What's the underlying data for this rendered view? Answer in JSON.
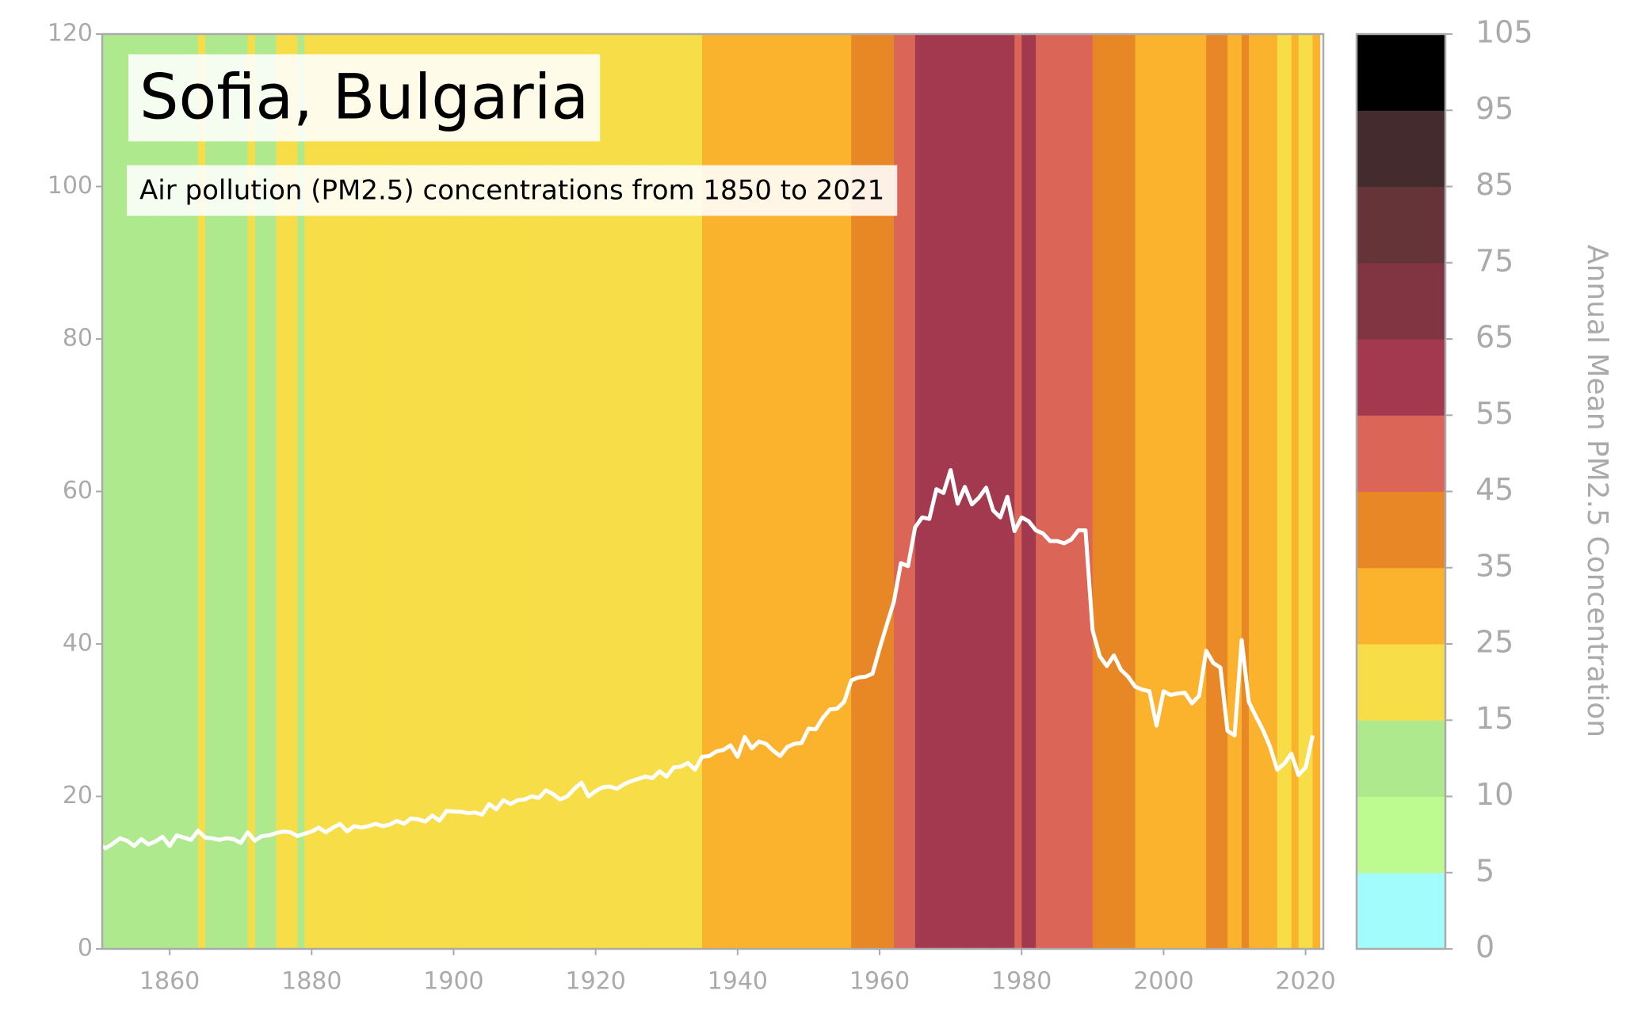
{
  "chart_data": {
    "type": "line",
    "title": "Sofia, Bulgaria",
    "subtitle": "Air pollution (PM2.5) concentrations from 1850 to 2021",
    "x": [
      1850,
      1851,
      1852,
      1853,
      1854,
      1855,
      1856,
      1857,
      1858,
      1859,
      1860,
      1861,
      1862,
      1863,
      1864,
      1865,
      1866,
      1867,
      1868,
      1869,
      1870,
      1871,
      1872,
      1873,
      1874,
      1875,
      1876,
      1877,
      1878,
      1879,
      1880,
      1881,
      1882,
      1883,
      1884,
      1885,
      1886,
      1887,
      1888,
      1889,
      1890,
      1891,
      1892,
      1893,
      1894,
      1895,
      1896,
      1897,
      1898,
      1899,
      1900,
      1901,
      1902,
      1903,
      1904,
      1905,
      1906,
      1907,
      1908,
      1909,
      1910,
      1911,
      1912,
      1913,
      1914,
      1915,
      1916,
      1917,
      1918,
      1919,
      1920,
      1921,
      1922,
      1923,
      1924,
      1925,
      1926,
      1927,
      1928,
      1929,
      1930,
      1931,
      1932,
      1933,
      1934,
      1935,
      1936,
      1937,
      1938,
      1939,
      1940,
      1941,
      1942,
      1943,
      1944,
      1945,
      1946,
      1947,
      1948,
      1949,
      1950,
      1951,
      1952,
      1953,
      1954,
      1955,
      1956,
      1957,
      1958,
      1959,
      1960,
      1961,
      1962,
      1963,
      1964,
      1965,
      1966,
      1967,
      1968,
      1969,
      1970,
      1971,
      1972,
      1973,
      1974,
      1975,
      1976,
      1977,
      1978,
      1979,
      1980,
      1981,
      1982,
      1983,
      1984,
      1985,
      1986,
      1987,
      1988,
      1989,
      1990,
      1991,
      1992,
      1993,
      1994,
      1995,
      1996,
      1997,
      1998,
      1999,
      2000,
      2001,
      2002,
      2003,
      2004,
      2005,
      2006,
      2007,
      2008,
      2009,
      2010,
      2011,
      2012,
      2013,
      2014,
      2015,
      2016,
      2017,
      2018,
      2019,
      2020,
      2021
    ],
    "values": [
      13.7,
      13.2,
      13.8,
      14.5,
      14.2,
      13.5,
      14.4,
      13.7,
      14.1,
      14.7,
      13.5,
      14.9,
      14.6,
      14.3,
      15.5,
      14.6,
      14.5,
      14.3,
      14.5,
      14.4,
      13.9,
      15.3,
      14.2,
      14.8,
      14.9,
      15.2,
      15.4,
      15.3,
      14.8,
      15.1,
      15.4,
      15.9,
      15.3,
      15.9,
      16.4,
      15.4,
      16.1,
      15.9,
      16.1,
      16.4,
      16.1,
      16.3,
      16.8,
      16.4,
      17.1,
      17.0,
      16.7,
      17.5,
      16.8,
      18.1,
      18.0,
      18.0,
      17.8,
      17.9,
      17.6,
      19.0,
      18.3,
      19.5,
      19.0,
      19.5,
      19.6,
      20.0,
      19.8,
      20.8,
      20.3,
      19.6,
      20.0,
      21.0,
      21.8,
      20.0,
      20.7,
      21.2,
      21.3,
      21.0,
      21.6,
      22.0,
      22.3,
      22.6,
      22.4,
      23.3,
      22.6,
      23.8,
      23.9,
      24.4,
      23.5,
      25.2,
      25.3,
      25.9,
      26.1,
      26.7,
      25.2,
      27.8,
      26.3,
      27.2,
      26.9,
      26.0,
      25.3,
      26.5,
      26.9,
      27.0,
      28.9,
      28.8,
      30.3,
      31.4,
      31.5,
      32.4,
      35.2,
      35.6,
      35.7,
      36.1,
      39.4,
      42.5,
      45.5,
      50.6,
      50.2,
      55.3,
      56.6,
      56.4,
      60.3,
      59.8,
      62.8,
      58.4,
      60.6,
      58.3,
      59.2,
      60.5,
      57.5,
      56.6,
      59.3,
      54.8,
      56.6,
      56.1,
      54.9,
      54.5,
      53.5,
      53.5,
      53.2,
      53.7,
      54.9,
      54.9,
      41.8,
      38.4,
      37.1,
      38.5,
      36.6,
      35.7,
      34.4,
      34.0,
      33.8,
      29.3,
      33.8,
      33.3,
      33.5,
      33.6,
      32.2,
      33.2,
      39.1,
      37.5,
      36.9,
      28.6,
      28.0,
      40.5,
      32.4,
      30.5,
      28.7,
      26.5,
      23.5,
      24.3,
      25.6,
      22.8,
      23.8,
      28.0
    ],
    "color": "#ffffff",
    "xlim": [
      1850.5,
      2022.5
    ],
    "xticks": [
      1860,
      1880,
      1900,
      1920,
      1940,
      1960,
      1980,
      2000,
      2020
    ],
    "ylim": [
      0,
      120
    ],
    "yticks": [
      0,
      20,
      40,
      60,
      80,
      100,
      120
    ],
    "colorbar": {
      "label": "Annual Mean PM2.5 Concentration",
      "bounds": [
        0,
        5,
        10,
        15,
        25,
        35,
        45,
        55,
        65,
        75,
        85,
        95,
        105
      ],
      "colors": [
        "#a3fcfc",
        "#bdfa8f",
        "#aeea8d",
        "#f7dd47",
        "#fbb22d",
        "#e88725",
        "#db6657",
        "#a3394e",
        "#813442",
        "#653438",
        "#442b2e",
        "#000000"
      ]
    }
  }
}
